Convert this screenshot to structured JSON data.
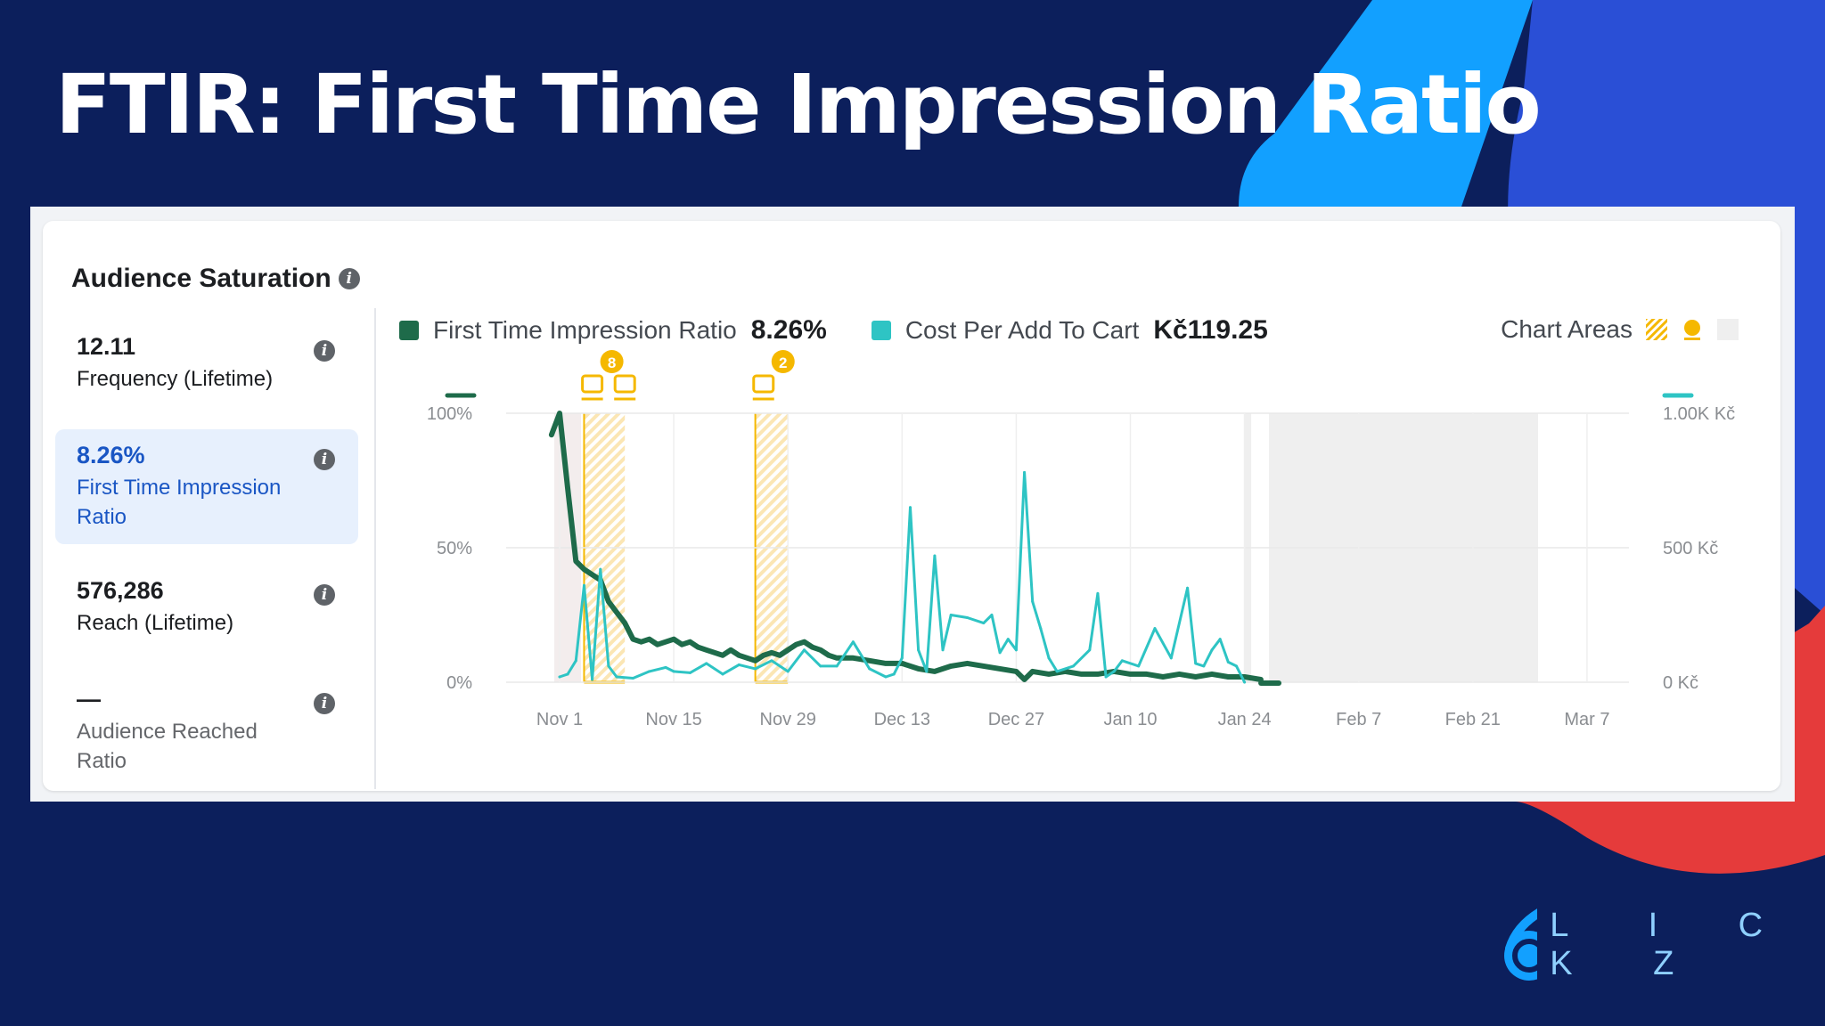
{
  "slide": {
    "title": "FTIR: First Time Impression Ratio",
    "colors": {
      "background": "#0c1f5c",
      "accent_blue": "#12a0ff",
      "accent_deep": "#2a4fd6",
      "accent_red": "#e53b3b"
    }
  },
  "card": {
    "title": "Audience Saturation",
    "info_icon": "info-icon"
  },
  "metrics": [
    {
      "value": "12.11",
      "label": "Frequency (Lifetime)",
      "state": "normal"
    },
    {
      "value": "8.26%",
      "label": "First Time Impression Ratio",
      "state": "active"
    },
    {
      "value": "576,286",
      "label": "Reach (Lifetime)",
      "state": "normal"
    },
    {
      "value": "—",
      "label": "Audience Reached Ratio",
      "state": "dim"
    }
  ],
  "legend": [
    {
      "name": "First Time Impression Ratio",
      "value": "8.26%",
      "color": "#1e6b4a"
    },
    {
      "name": "Cost Per Add To Cart",
      "value": "Kč119.25",
      "color": "#2ec4c4"
    }
  ],
  "chart_areas": {
    "label": "Chart Areas",
    "icons": [
      "hatched-area-icon",
      "marker-icon",
      "shaded-area-icon"
    ]
  },
  "chart_data": {
    "type": "line",
    "x_tick_labels": [
      "Nov 1",
      "Nov 15",
      "Nov 29",
      "Dec 13",
      "Dec 27",
      "Jan 10",
      "Jan 24",
      "Feb 7",
      "Feb 21",
      "Mar 7"
    ],
    "y_left_tick_labels": [
      "100%",
      "50%",
      "0%"
    ],
    "y_right_tick_labels": [
      "1.00K Kč",
      "500 Kč",
      "0 Kč"
    ],
    "y_left_range": [
      0,
      100
    ],
    "y_right_range": [
      0,
      1000
    ],
    "grid": true,
    "series": [
      {
        "name": "First Time Impression Ratio",
        "axis": "left",
        "color": "#1e6b4a",
        "x": [
          "Oct 31",
          "Nov 1",
          "Nov 2",
          "Nov 3",
          "Nov 4",
          "Nov 5",
          "Nov 6",
          "Nov 7",
          "Nov 8",
          "Nov 9",
          "Nov 10",
          "Nov 11",
          "Nov 12",
          "Nov 13",
          "Nov 14",
          "Nov 15",
          "Nov 16",
          "Nov 17",
          "Nov 18",
          "Nov 19",
          "Nov 20",
          "Nov 21",
          "Nov 22",
          "Nov 23",
          "Nov 24",
          "Nov 25",
          "Nov 26",
          "Nov 27",
          "Nov 28",
          "Nov 29",
          "Nov 30",
          "Dec 1",
          "Dec 2",
          "Dec 3",
          "Dec 4",
          "Dec 5",
          "Dec 7",
          "Dec 9",
          "Dec 11",
          "Dec 13",
          "Dec 15",
          "Dec 17",
          "Dec 19",
          "Dec 21",
          "Dec 23",
          "Dec 25",
          "Dec 27",
          "Dec 28",
          "Dec 29",
          "Dec 31",
          "Jan 2",
          "Jan 4",
          "Jan 6",
          "Jan 8",
          "Jan 10",
          "Jan 12",
          "Jan 14",
          "Jan 16",
          "Jan 18",
          "Jan 20",
          "Jan 22",
          "Jan 24",
          "Jan 26"
        ],
        "y": [
          92,
          100,
          72,
          45,
          42,
          40,
          38,
          30,
          26,
          22,
          16,
          15,
          16,
          14,
          15,
          16,
          14,
          15,
          13,
          12,
          11,
          10,
          12,
          10,
          9,
          8,
          10,
          11,
          10,
          12,
          14,
          15,
          13,
          12,
          10,
          9,
          9,
          8,
          7,
          7,
          5,
          4,
          6,
          7,
          6,
          5,
          4,
          1,
          4,
          3,
          4,
          3,
          3,
          4,
          3,
          3,
          2,
          3,
          2,
          3,
          2,
          2,
          1
        ]
      },
      {
        "name": "Cost Per Add To Cart",
        "axis": "right",
        "color": "#2ec4c4",
        "x": [
          "Nov 1",
          "Nov 2",
          "Nov 3",
          "Nov 4",
          "Nov 5",
          "Nov 6",
          "Nov 7",
          "Nov 8",
          "Nov 10",
          "Nov 12",
          "Nov 14",
          "Nov 15",
          "Nov 17",
          "Nov 19",
          "Nov 21",
          "Nov 23",
          "Nov 25",
          "Nov 27",
          "Nov 29",
          "Dec 1",
          "Dec 3",
          "Dec 5",
          "Dec 7",
          "Dec 9",
          "Dec 11",
          "Dec 12",
          "Dec 13",
          "Dec 14",
          "Dec 15",
          "Dec 16",
          "Dec 17",
          "Dec 18",
          "Dec 19",
          "Dec 21",
          "Dec 23",
          "Dec 24",
          "Dec 25",
          "Dec 26",
          "Dec 27",
          "Dec 28",
          "Dec 29",
          "Dec 30",
          "Dec 31",
          "Jan 1",
          "Jan 3",
          "Jan 5",
          "Jan 6",
          "Jan 7",
          "Jan 8",
          "Jan 9",
          "Jan 11",
          "Jan 13",
          "Jan 15",
          "Jan 17",
          "Jan 18",
          "Jan 19",
          "Jan 20",
          "Jan 21",
          "Jan 22",
          "Jan 23",
          "Jan 24"
        ],
        "y": [
          20,
          30,
          80,
          360,
          10,
          420,
          60,
          20,
          15,
          40,
          55,
          40,
          35,
          70,
          30,
          65,
          50,
          80,
          40,
          120,
          60,
          60,
          150,
          50,
          20,
          30,
          90,
          650,
          120,
          40,
          470,
          120,
          250,
          240,
          220,
          250,
          110,
          160,
          120,
          780,
          300,
          200,
          90,
          40,
          60,
          120,
          330,
          20,
          40,
          80,
          60,
          200,
          90,
          350,
          70,
          60,
          120,
          160,
          75,
          60,
          0
        ]
      }
    ],
    "hatched_areas": [
      {
        "from": "Nov 4",
        "to": "Nov 9"
      },
      {
        "from": "Nov 25",
        "to": "Nov 29"
      }
    ],
    "shaded_area": {
      "from": "Jan 27",
      "to": "Mar 1"
    },
    "annotations": [
      {
        "date": "Nov 5",
        "badge": "8"
      },
      {
        "date": "Nov 9",
        "badge": ""
      },
      {
        "date": "Nov 26",
        "badge": "2"
      }
    ]
  },
  "brand": {
    "logo_text": "L I C K Z",
    "logo_icon": "6-circle-logo-icon"
  }
}
